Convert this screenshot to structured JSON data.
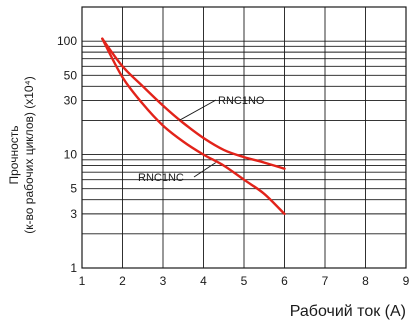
{
  "chart_data": {
    "type": "line",
    "xlabel": "Рабочий ток (A)",
    "ylabel_lines": [
      "Прочность",
      "(к-во рабочих циклов) (x10⁴)"
    ],
    "xlim": [
      1,
      9
    ],
    "ylim": [
      1,
      200
    ],
    "y_scale": "log",
    "grid": true,
    "x_ticks": [
      1,
      2,
      3,
      4,
      5,
      6,
      7,
      8,
      9
    ],
    "y_ticks": [
      1,
      3,
      5,
      10,
      30,
      50,
      100
    ],
    "y_gridlines": [
      1,
      2,
      3,
      4,
      5,
      6,
      7,
      8,
      9,
      10,
      20,
      30,
      40,
      50,
      60,
      70,
      80,
      90,
      100,
      200
    ],
    "series": [
      {
        "name": "RNC1NO",
        "color": "#e2231a",
        "x": [
          1.5,
          2,
          2.5,
          3,
          3.5,
          4,
          4.5,
          5,
          5.5,
          6
        ],
        "y": [
          105,
          60,
          40,
          27,
          19,
          14,
          11,
          9.5,
          8.5,
          7.5
        ]
      },
      {
        "name": "RNC1NC",
        "color": "#e2231a",
        "x": [
          1.5,
          2,
          2.5,
          3,
          3.5,
          4,
          4.5,
          5,
          5.5,
          6
        ],
        "y": [
          105,
          48,
          28,
          18,
          13,
          10,
          8,
          6,
          4.5,
          3
        ]
      }
    ]
  }
}
